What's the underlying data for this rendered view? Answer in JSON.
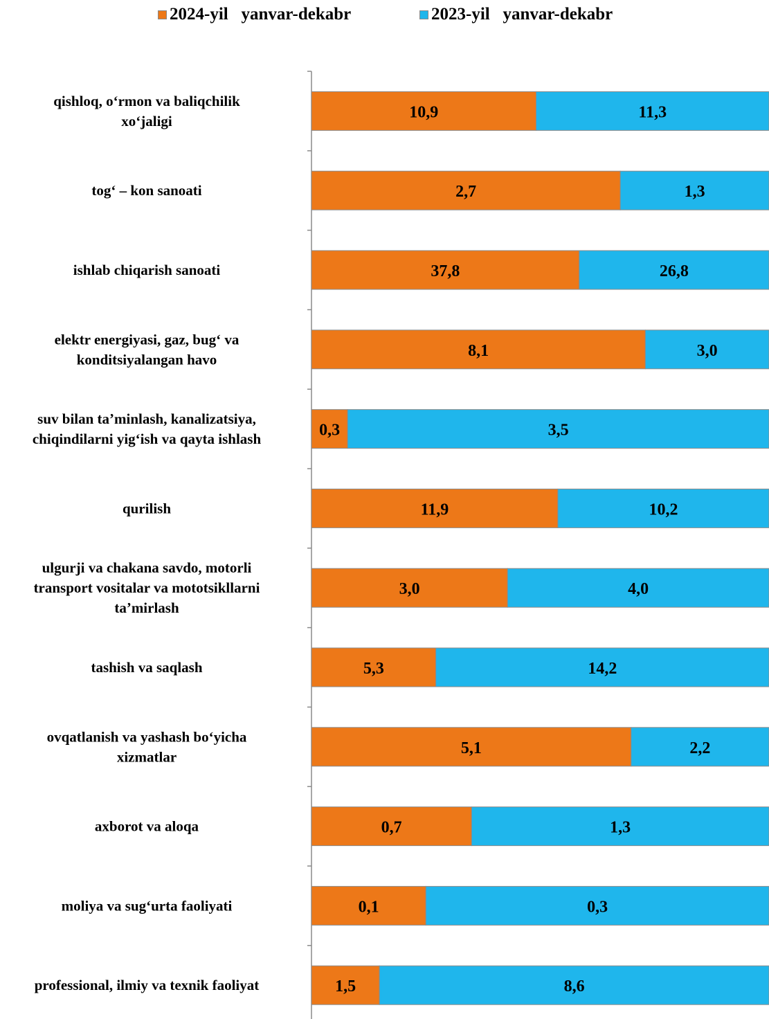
{
  "legend": {
    "s2024": "2024-yil   yanvar-dekabr",
    "s2023": "2023-yil   yanvar-dekabr"
  },
  "colors": {
    "s2024": "#ED7818",
    "s2023": "#1FB6EC",
    "border": "#8a8a8a",
    "axis": "#8a8a8a"
  },
  "chart_data": {
    "type": "bar",
    "orientation": "horizontal",
    "stacked": "percent",
    "legend_position": "top",
    "categories": [
      [
        "qishloq, o‘rmon va baliqchilik",
        "xo‘jaligi"
      ],
      [
        "tog‘ – kon sanoati"
      ],
      [
        "ishlab chiqarish sanoati"
      ],
      [
        "elektr energiyasi, gaz, bug‘ va",
        "konditsiyalangan havo"
      ],
      [
        "suv bilan ta’minlash, kanalizatsiya,",
        "chiqindilarni yig‘ish va qayta ishlash"
      ],
      [
        "qurilish"
      ],
      [
        "ulgurji va chakana savdo, motorli",
        "transport vositalar va mototsikllarni",
        "ta’mirlash"
      ],
      [
        "tashish va saqlash"
      ],
      [
        "ovqatlanish va yashash bo‘yicha",
        "xizmatlar"
      ],
      [
        "axborot va aloqa"
      ],
      [
        "moliya va sug‘urta faoliyati"
      ],
      [
        "professional, ilmiy va texnik faoliyat"
      ]
    ],
    "series": [
      {
        "name": "2024-yil   yanvar-dekabr",
        "values": [
          10.9,
          2.7,
          37.8,
          8.1,
          0.3,
          11.9,
          3.0,
          5.3,
          5.1,
          0.7,
          0.1,
          1.5
        ],
        "labels": [
          "10,9",
          "2,7",
          "37,8",
          "8,1",
          "0,3",
          "11,9",
          "3,0",
          "5,3",
          "5,1",
          "0,7",
          "0,1",
          "1,5"
        ]
      },
      {
        "name": "2023-yil   yanvar-dekabr",
        "values": [
          11.3,
          1.3,
          26.8,
          3.0,
          3.5,
          10.2,
          4.0,
          14.2,
          2.2,
          1.3,
          0.3,
          8.6
        ],
        "labels": [
          "11,3",
          "1,3",
          "26,8",
          "3,0",
          "3,5",
          "10,2",
          "4,0",
          "14,2",
          "2,2",
          "1,3",
          "0,3",
          "8,6"
        ]
      }
    ]
  }
}
